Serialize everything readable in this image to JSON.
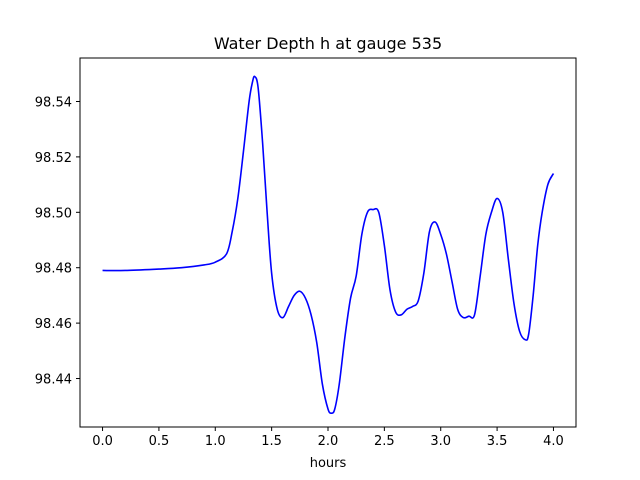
{
  "chart_data": {
    "type": "line",
    "title": "Water Depth h at gauge 535",
    "xlabel": "hours",
    "ylabel": "",
    "xlim": [
      -0.2,
      4.2
    ],
    "ylim": [
      98.4225,
      98.5557
    ],
    "grid": false,
    "x_ticks": [
      0.0,
      0.5,
      1.0,
      1.5,
      2.0,
      2.5,
      3.0,
      3.5,
      4.0
    ],
    "x_tick_labels": [
      "0.0",
      "0.5",
      "1.0",
      "1.5",
      "2.0",
      "2.5",
      "3.0",
      "3.5",
      "4.0"
    ],
    "y_ticks": [
      98.44,
      98.46,
      98.48,
      98.5,
      98.52,
      98.54
    ],
    "y_tick_labels": [
      "98.44",
      "98.46",
      "98.48",
      "98.50",
      "98.52",
      "98.54"
    ],
    "series": [
      {
        "color": "#0000ff",
        "x": [
          0.0,
          0.2,
          0.5,
          0.7,
          0.9,
          1.0,
          1.1,
          1.15,
          1.2,
          1.25,
          1.3,
          1.33,
          1.35,
          1.38,
          1.42,
          1.46,
          1.5,
          1.55,
          1.6,
          1.65,
          1.7,
          1.75,
          1.8,
          1.85,
          1.9,
          1.95,
          2.0,
          2.03,
          2.06,
          2.1,
          2.15,
          2.2,
          2.25,
          2.3,
          2.35,
          2.4,
          2.45,
          2.5,
          2.55,
          2.6,
          2.65,
          2.7,
          2.75,
          2.8,
          2.85,
          2.9,
          2.95,
          3.0,
          3.05,
          3.1,
          3.15,
          3.2,
          3.25,
          3.3,
          3.35,
          3.4,
          3.45,
          3.5,
          3.55,
          3.6,
          3.65,
          3.7,
          3.75,
          3.78,
          3.82,
          3.86,
          3.9,
          3.95,
          4.0
        ],
        "y": [
          98.479,
          98.479,
          98.4795,
          98.48,
          98.481,
          98.482,
          98.485,
          98.493,
          98.505,
          98.522,
          98.54,
          98.547,
          98.549,
          98.545,
          98.525,
          98.5,
          98.478,
          98.465,
          98.462,
          98.466,
          98.47,
          98.4715,
          98.469,
          98.463,
          98.453,
          98.438,
          98.429,
          98.4275,
          98.429,
          98.438,
          98.455,
          98.469,
          98.477,
          98.492,
          98.5,
          98.501,
          98.5,
          98.488,
          98.472,
          98.464,
          98.463,
          98.465,
          98.466,
          98.468,
          98.478,
          98.493,
          98.4965,
          98.492,
          98.485,
          98.475,
          98.465,
          98.462,
          98.4625,
          98.463,
          98.477,
          98.492,
          98.5,
          98.505,
          98.5,
          98.483,
          98.467,
          98.457,
          98.454,
          98.456,
          98.47,
          98.488,
          98.5,
          98.51,
          98.514
        ]
      }
    ]
  }
}
